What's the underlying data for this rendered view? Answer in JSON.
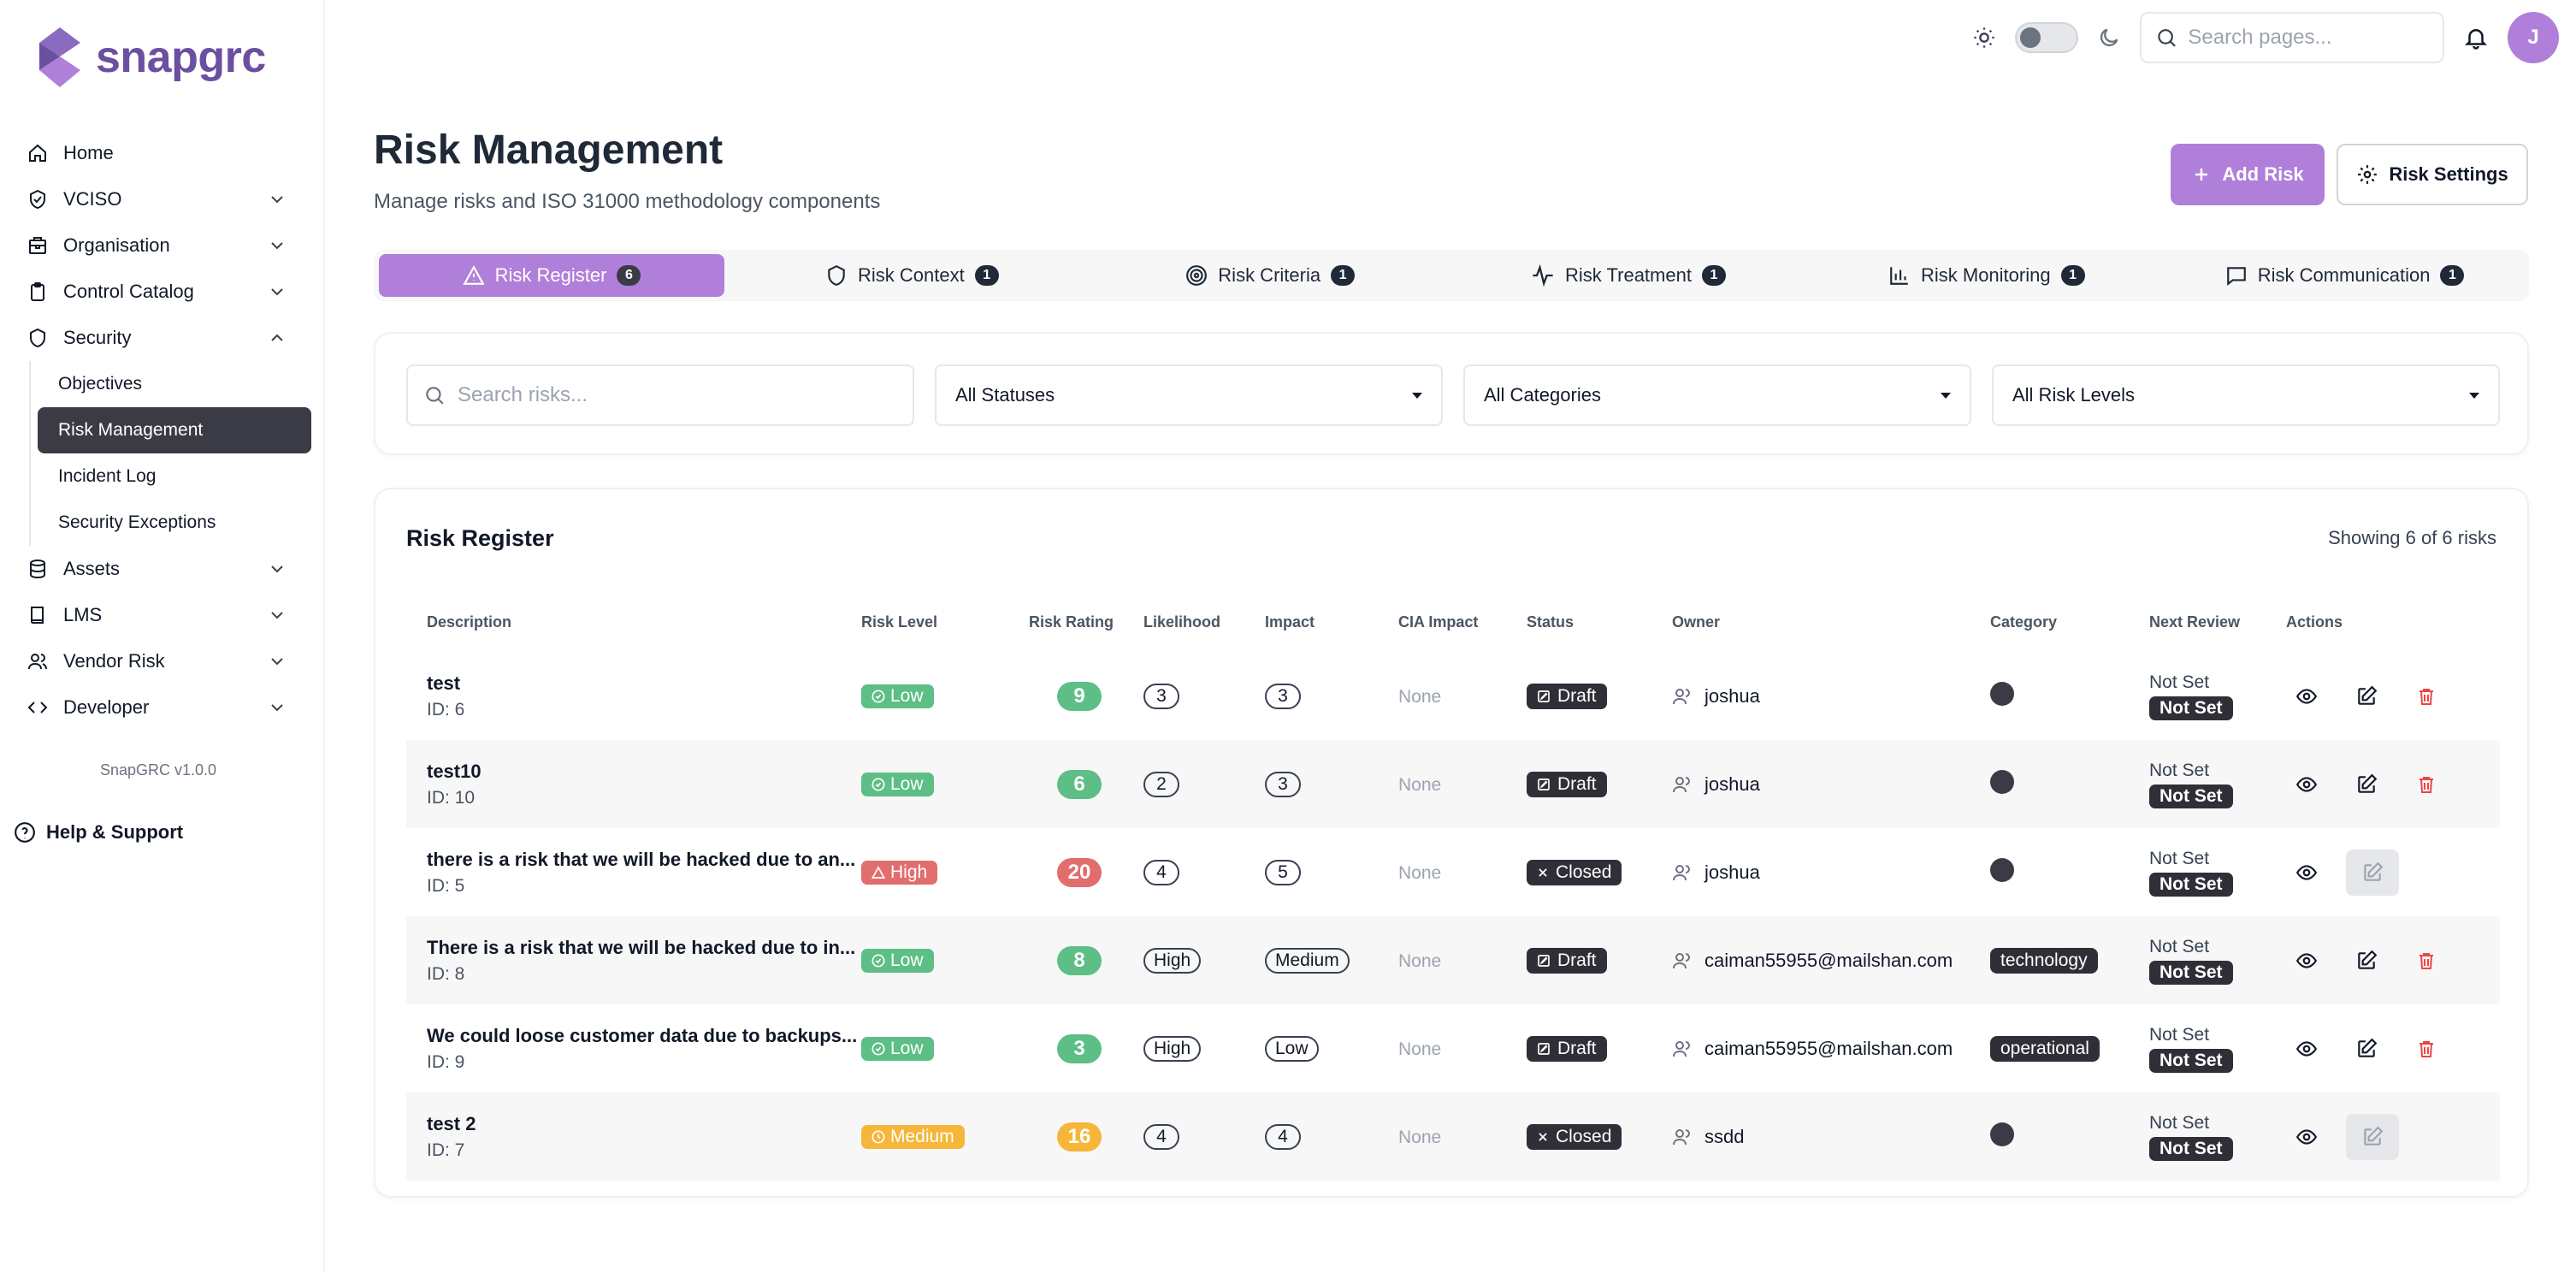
{
  "app": {
    "brand": "snapgrc",
    "version": "SnapGRC v1.0.0",
    "help_label": "Help & Support",
    "accent": "#b07fd9"
  },
  "sidebar": {
    "items": [
      {
        "label": "Home",
        "icon": "home-icon"
      },
      {
        "label": "VCISO",
        "icon": "shield-check-icon"
      },
      {
        "label": "Organisation",
        "icon": "building-icon"
      },
      {
        "label": "Control Catalog",
        "icon": "clipboard-icon"
      },
      {
        "label": "Security",
        "icon": "shield-icon"
      },
      {
        "label": "Assets",
        "icon": "database-icon"
      },
      {
        "label": "LMS",
        "icon": "book-icon"
      },
      {
        "label": "Vendor Risk",
        "icon": "users-icon"
      },
      {
        "label": "Developer",
        "icon": "code-icon"
      }
    ],
    "security_sub": [
      "Objectives",
      "Risk Management",
      "Incident Log",
      "Security Exceptions"
    ],
    "active_sub": "Risk Management"
  },
  "header": {
    "search_placeholder": "Search pages...",
    "avatar_initial": "J"
  },
  "page": {
    "title": "Risk Management",
    "subtitle": "Manage risks and ISO 31000 methodology components",
    "add_button": "Add Risk",
    "settings_button": "Risk Settings"
  },
  "tabs": [
    {
      "label": "Risk Register",
      "count": "6"
    },
    {
      "label": "Risk Context",
      "count": "1"
    },
    {
      "label": "Risk Criteria",
      "count": "1"
    },
    {
      "label": "Risk Treatment",
      "count": "1"
    },
    {
      "label": "Risk Monitoring",
      "count": "1"
    },
    {
      "label": "Risk Communication",
      "count": "1"
    }
  ],
  "filters": {
    "search_placeholder": "Search risks...",
    "status": "All Statuses",
    "category": "All Categories",
    "level": "All Risk Levels"
  },
  "register": {
    "title": "Risk Register",
    "showing": "Showing 6 of 6 risks",
    "columns": [
      "Description",
      "Risk Level",
      "Risk Rating",
      "Likelihood",
      "Impact",
      "CIA Impact",
      "Status",
      "Owner",
      "Category",
      "Next Review",
      "Actions"
    ],
    "rows": [
      {
        "desc": "test",
        "id": "ID: 6",
        "level": "Low",
        "rating": "9",
        "likelihood": "3",
        "impact": "3",
        "cia": "None",
        "status": "Draft",
        "owner": "joshua",
        "category": "",
        "review": "Not Set",
        "review_badge": "Not Set"
      },
      {
        "desc": "test10",
        "id": "ID: 10",
        "level": "Low",
        "rating": "6",
        "likelihood": "2",
        "impact": "3",
        "cia": "None",
        "status": "Draft",
        "owner": "joshua",
        "category": "",
        "review": "Not Set",
        "review_badge": "Not Set"
      },
      {
        "desc": "there is a risk that we will be hacked due to an...",
        "id": "ID: 5",
        "level": "High",
        "rating": "20",
        "likelihood": "4",
        "impact": "5",
        "cia": "None",
        "status": "Closed",
        "owner": "joshua",
        "category": "",
        "review": "Not Set",
        "review_badge": "Not Set"
      },
      {
        "desc": "There is a risk that we will be hacked due to in...",
        "id": "ID: 8",
        "level": "Low",
        "rating": "8",
        "likelihood": "High",
        "impact": "Medium",
        "cia": "None",
        "status": "Draft",
        "owner": "caiman55955@mailshan.com",
        "category": "technology",
        "review": "Not Set",
        "review_badge": "Not Set"
      },
      {
        "desc": "We could loose customer data due to backups...",
        "id": "ID: 9",
        "level": "Low",
        "rating": "3",
        "likelihood": "High",
        "impact": "Low",
        "cia": "None",
        "status": "Draft",
        "owner": "caiman55955@mailshan.com",
        "category": "operational",
        "review": "Not Set",
        "review_badge": "Not Set"
      },
      {
        "desc": "test 2",
        "id": "ID: 7",
        "level": "Medium",
        "rating": "16",
        "likelihood": "4",
        "impact": "4",
        "cia": "None",
        "status": "Closed",
        "owner": "ssdd",
        "category": "",
        "review": "Not Set",
        "review_badge": "Not Set"
      }
    ]
  },
  "colors": {
    "low": "#5dbf86",
    "high": "#e26d6d",
    "medium": "#f5b63a",
    "dark_badge": "#2f2f38",
    "delete": "#ef4444"
  }
}
